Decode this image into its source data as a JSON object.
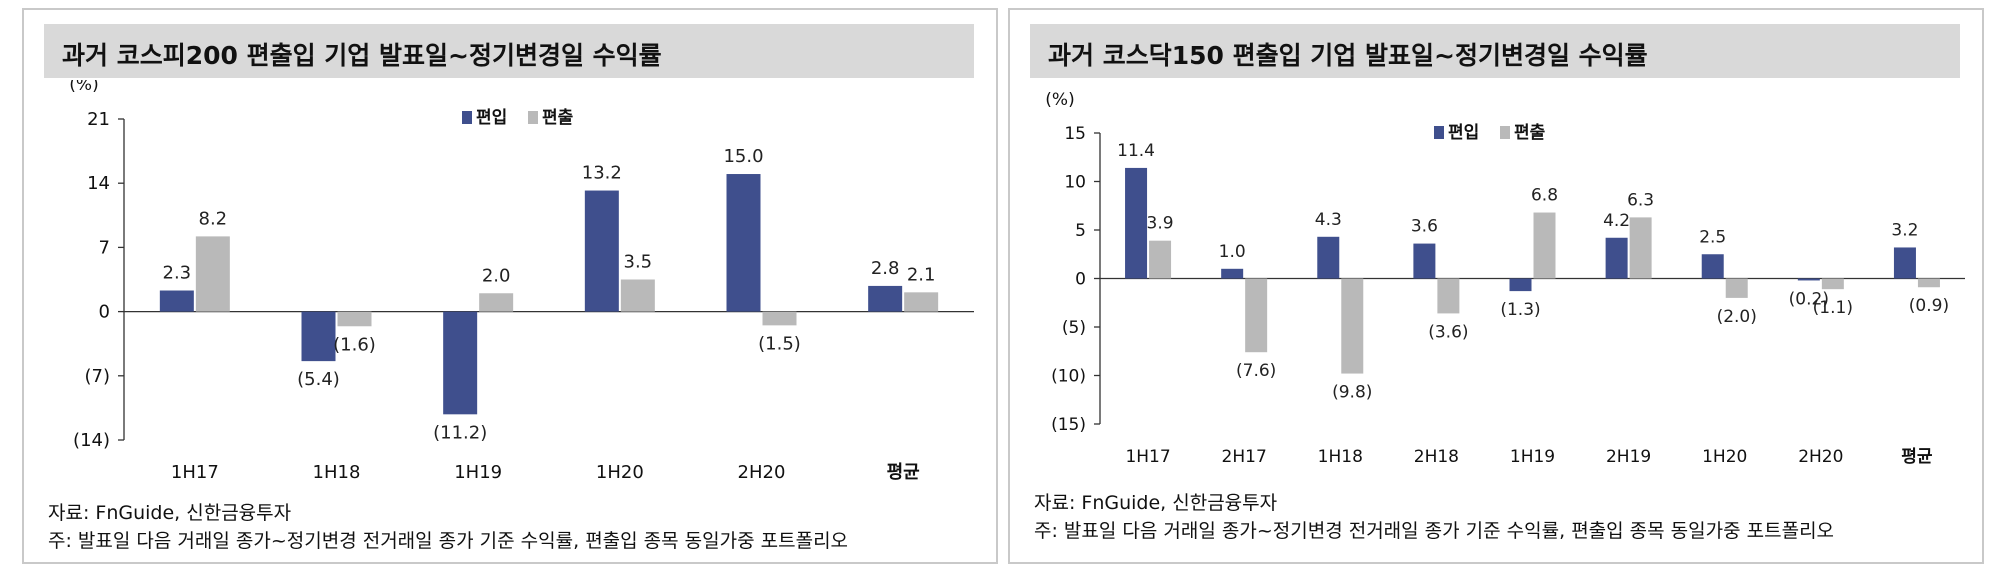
{
  "chart_data": [
    {
      "type": "bar",
      "title": "과거 코스피200 편출입 기업 발표일~정기변경일 수익률",
      "unit": "(%)",
      "categories": [
        "1H17",
        "1H18",
        "1H19",
        "1H20",
        "2H20",
        "평균"
      ],
      "series": [
        {
          "name": "편입",
          "values": [
            2.3,
            -5.4,
            -11.2,
            13.2,
            15.0,
            2.8
          ],
          "labels": [
            "2.3",
            "(5.4)",
            "(11.2)",
            "13.2",
            "15.0",
            "2.8"
          ],
          "color": "#3f4f8d"
        },
        {
          "name": "편출",
          "values": [
            8.2,
            -1.6,
            2.0,
            3.5,
            -1.5,
            2.1
          ],
          "labels": [
            "8.2",
            "(1.6)",
            "2.0",
            "3.5",
            "(1.5)",
            "2.1"
          ],
          "color": "#b9b9b9"
        }
      ],
      "ylim": [
        -14,
        21
      ],
      "yticks": [
        21,
        14,
        7,
        0,
        -7,
        -14
      ],
      "ytick_labels": [
        "21",
        "14",
        "7",
        "0",
        "(7)",
        "(14)"
      ],
      "legend_position": "top-center",
      "grid": false,
      "source": "자료: FnGuide, 신한금융투자",
      "note": "주: 발표일 다음 거래일 종가~정기변경 전거래일 종가 기준 수익률, 편출입 종목 동일가중 포트폴리오"
    },
    {
      "type": "bar",
      "title": "과거 코스닥150 편출입 기업 발표일~정기변경일 수익률",
      "unit": "(%)",
      "categories": [
        "1H17",
        "2H17",
        "1H18",
        "2H18",
        "1H19",
        "2H19",
        "1H20",
        "2H20",
        "평균"
      ],
      "series": [
        {
          "name": "편입",
          "values": [
            11.4,
            1.0,
            4.3,
            3.6,
            -1.3,
            4.2,
            2.5,
            -0.2,
            3.2
          ],
          "labels": [
            "11.4",
            "1.0",
            "4.3",
            "3.6",
            "(1.3)",
            "4.2",
            "2.5",
            "(0.2)",
            "3.2"
          ],
          "color": "#3f4f8d"
        },
        {
          "name": "편출",
          "values": [
            3.9,
            -7.6,
            -9.8,
            -3.6,
            6.8,
            6.3,
            -2.0,
            -1.1,
            -0.9
          ],
          "labels": [
            "3.9",
            "(7.6)",
            "(9.8)",
            "(3.6)",
            "6.8",
            "6.3",
            "(2.0)",
            "(1.1)",
            "(0.9)"
          ],
          "color": "#b9b9b9"
        }
      ],
      "ylim": [
        -15,
        15
      ],
      "yticks": [
        15,
        10,
        5,
        0,
        -5,
        -10,
        -15
      ],
      "ytick_labels": [
        "15",
        "10",
        "5",
        "0",
        "(5)",
        "(10)",
        "(15)"
      ],
      "legend_position": "top-center",
      "grid": false,
      "source": "자료: FnGuide, 신한금융투자",
      "note": "주: 발표일 다음 거래일 종가~정기변경 전거래일 종가 기준 수익률, 편출입 종목 동일가중 포트폴리오"
    }
  ]
}
